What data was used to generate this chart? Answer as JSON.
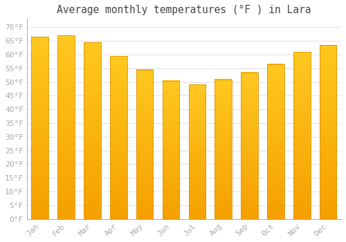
{
  "title": "Average monthly temperatures (°F ) in Lara",
  "months": [
    "Jan",
    "Feb",
    "Mar",
    "Apr",
    "May",
    "Jun",
    "Jul",
    "Aug",
    "Sep",
    "Oct",
    "Nov",
    "Dec"
  ],
  "values": [
    66.5,
    67.0,
    64.5,
    59.5,
    54.5,
    50.5,
    49.0,
    51.0,
    53.5,
    56.5,
    61.0,
    63.5
  ],
  "bar_color_top": "#FFC820",
  "bar_color_bottom": "#F5A000",
  "bar_edge_color": "#E09000",
  "background_color": "#FFFFFF",
  "grid_color": "#DDDDDD",
  "ylim": [
    0,
    73
  ],
  "yticks": [
    0,
    5,
    10,
    15,
    20,
    25,
    30,
    35,
    40,
    45,
    50,
    55,
    60,
    65,
    70
  ],
  "tick_label_color": "#AAAAAA",
  "title_color": "#444444",
  "title_fontsize": 10.5,
  "tick_fontsize": 8,
  "font_family": "monospace",
  "bar_width": 0.65
}
